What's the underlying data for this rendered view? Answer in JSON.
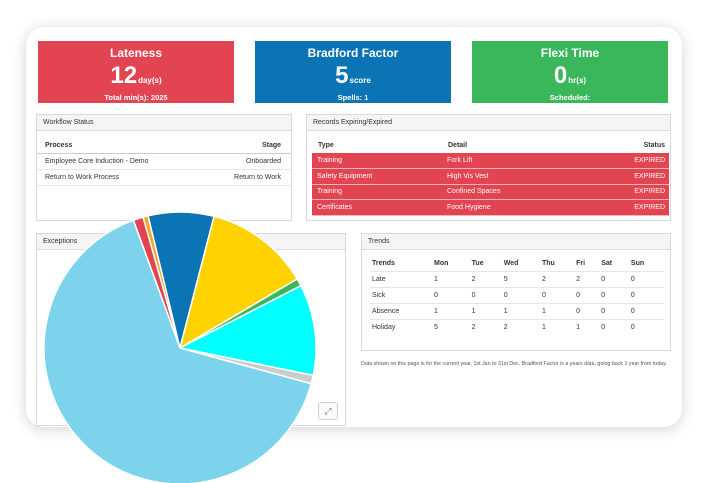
{
  "kpis": {
    "lateness": {
      "title": "Lateness",
      "value": "12",
      "unit": "day(s)",
      "sub": "Total min(s): 2025",
      "color": "#e24452"
    },
    "bradford": {
      "title": "Bradford Factor",
      "value": "5",
      "unit": "score",
      "sub": "Spells: 1",
      "color": "#0b74b5"
    },
    "flexi": {
      "title": "Flexi Time",
      "value": "0",
      "unit": "hr(s)",
      "sub": "Scheduled:",
      "color": "#3bb75b"
    }
  },
  "workflow": {
    "title": "Workflow Status",
    "headers": [
      "Process",
      "Stage"
    ],
    "rows": [
      [
        "Employee Core Induction - Demo",
        "Onboarded"
      ],
      [
        "Return to Work Process",
        "Return to Work"
      ]
    ]
  },
  "records": {
    "title": "Records Expiring/Expired",
    "headers": [
      "Type",
      "Detail",
      "Status"
    ],
    "rows": [
      [
        "Training",
        "Fork Lift",
        "EXPIRED"
      ],
      [
        "Safety Equipment",
        "High Vis Vest",
        "EXPIRED"
      ],
      [
        "Training",
        "Confined Spaces",
        "EXPIRED"
      ],
      [
        "Certificates",
        "Food Hygiene",
        "EXPIRED"
      ]
    ]
  },
  "exceptions": {
    "title": "Exceptions",
    "expand_icon": "expand-icon"
  },
  "trends": {
    "title": "Trends",
    "headers": [
      "Trends",
      "Mon",
      "Tue",
      "Wed",
      "Thu",
      "Fri",
      "Sat",
      "Sun"
    ],
    "rows": [
      [
        "Late",
        "1",
        "2",
        "5",
        "2",
        "2",
        "0",
        "0"
      ],
      [
        "Sick",
        "0",
        "0",
        "0",
        "0",
        "0",
        "0",
        "0"
      ],
      [
        "Absence",
        "1",
        "1",
        "1",
        "1",
        "0",
        "0",
        "0"
      ],
      [
        "Holiday",
        "5",
        "2",
        "2",
        "1",
        "1",
        "0",
        "0"
      ]
    ]
  },
  "footnote": "Data shown on this page is for the current year, 1st Jan to 31st Dec. Bradford Factor is a years data, going back 1 year from today.",
  "chart_data": {
    "type": "pie",
    "values": [
      1.2,
      0.6,
      7.8,
      12.5,
      0.9,
      10.8,
      1.0,
      65.2
    ],
    "colors": [
      "#e24452",
      "#f5a623",
      "#0b74b5",
      "#ffd200",
      "#3bb75b",
      "#00ffff",
      "#cccccc",
      "#7ed3ec"
    ]
  }
}
